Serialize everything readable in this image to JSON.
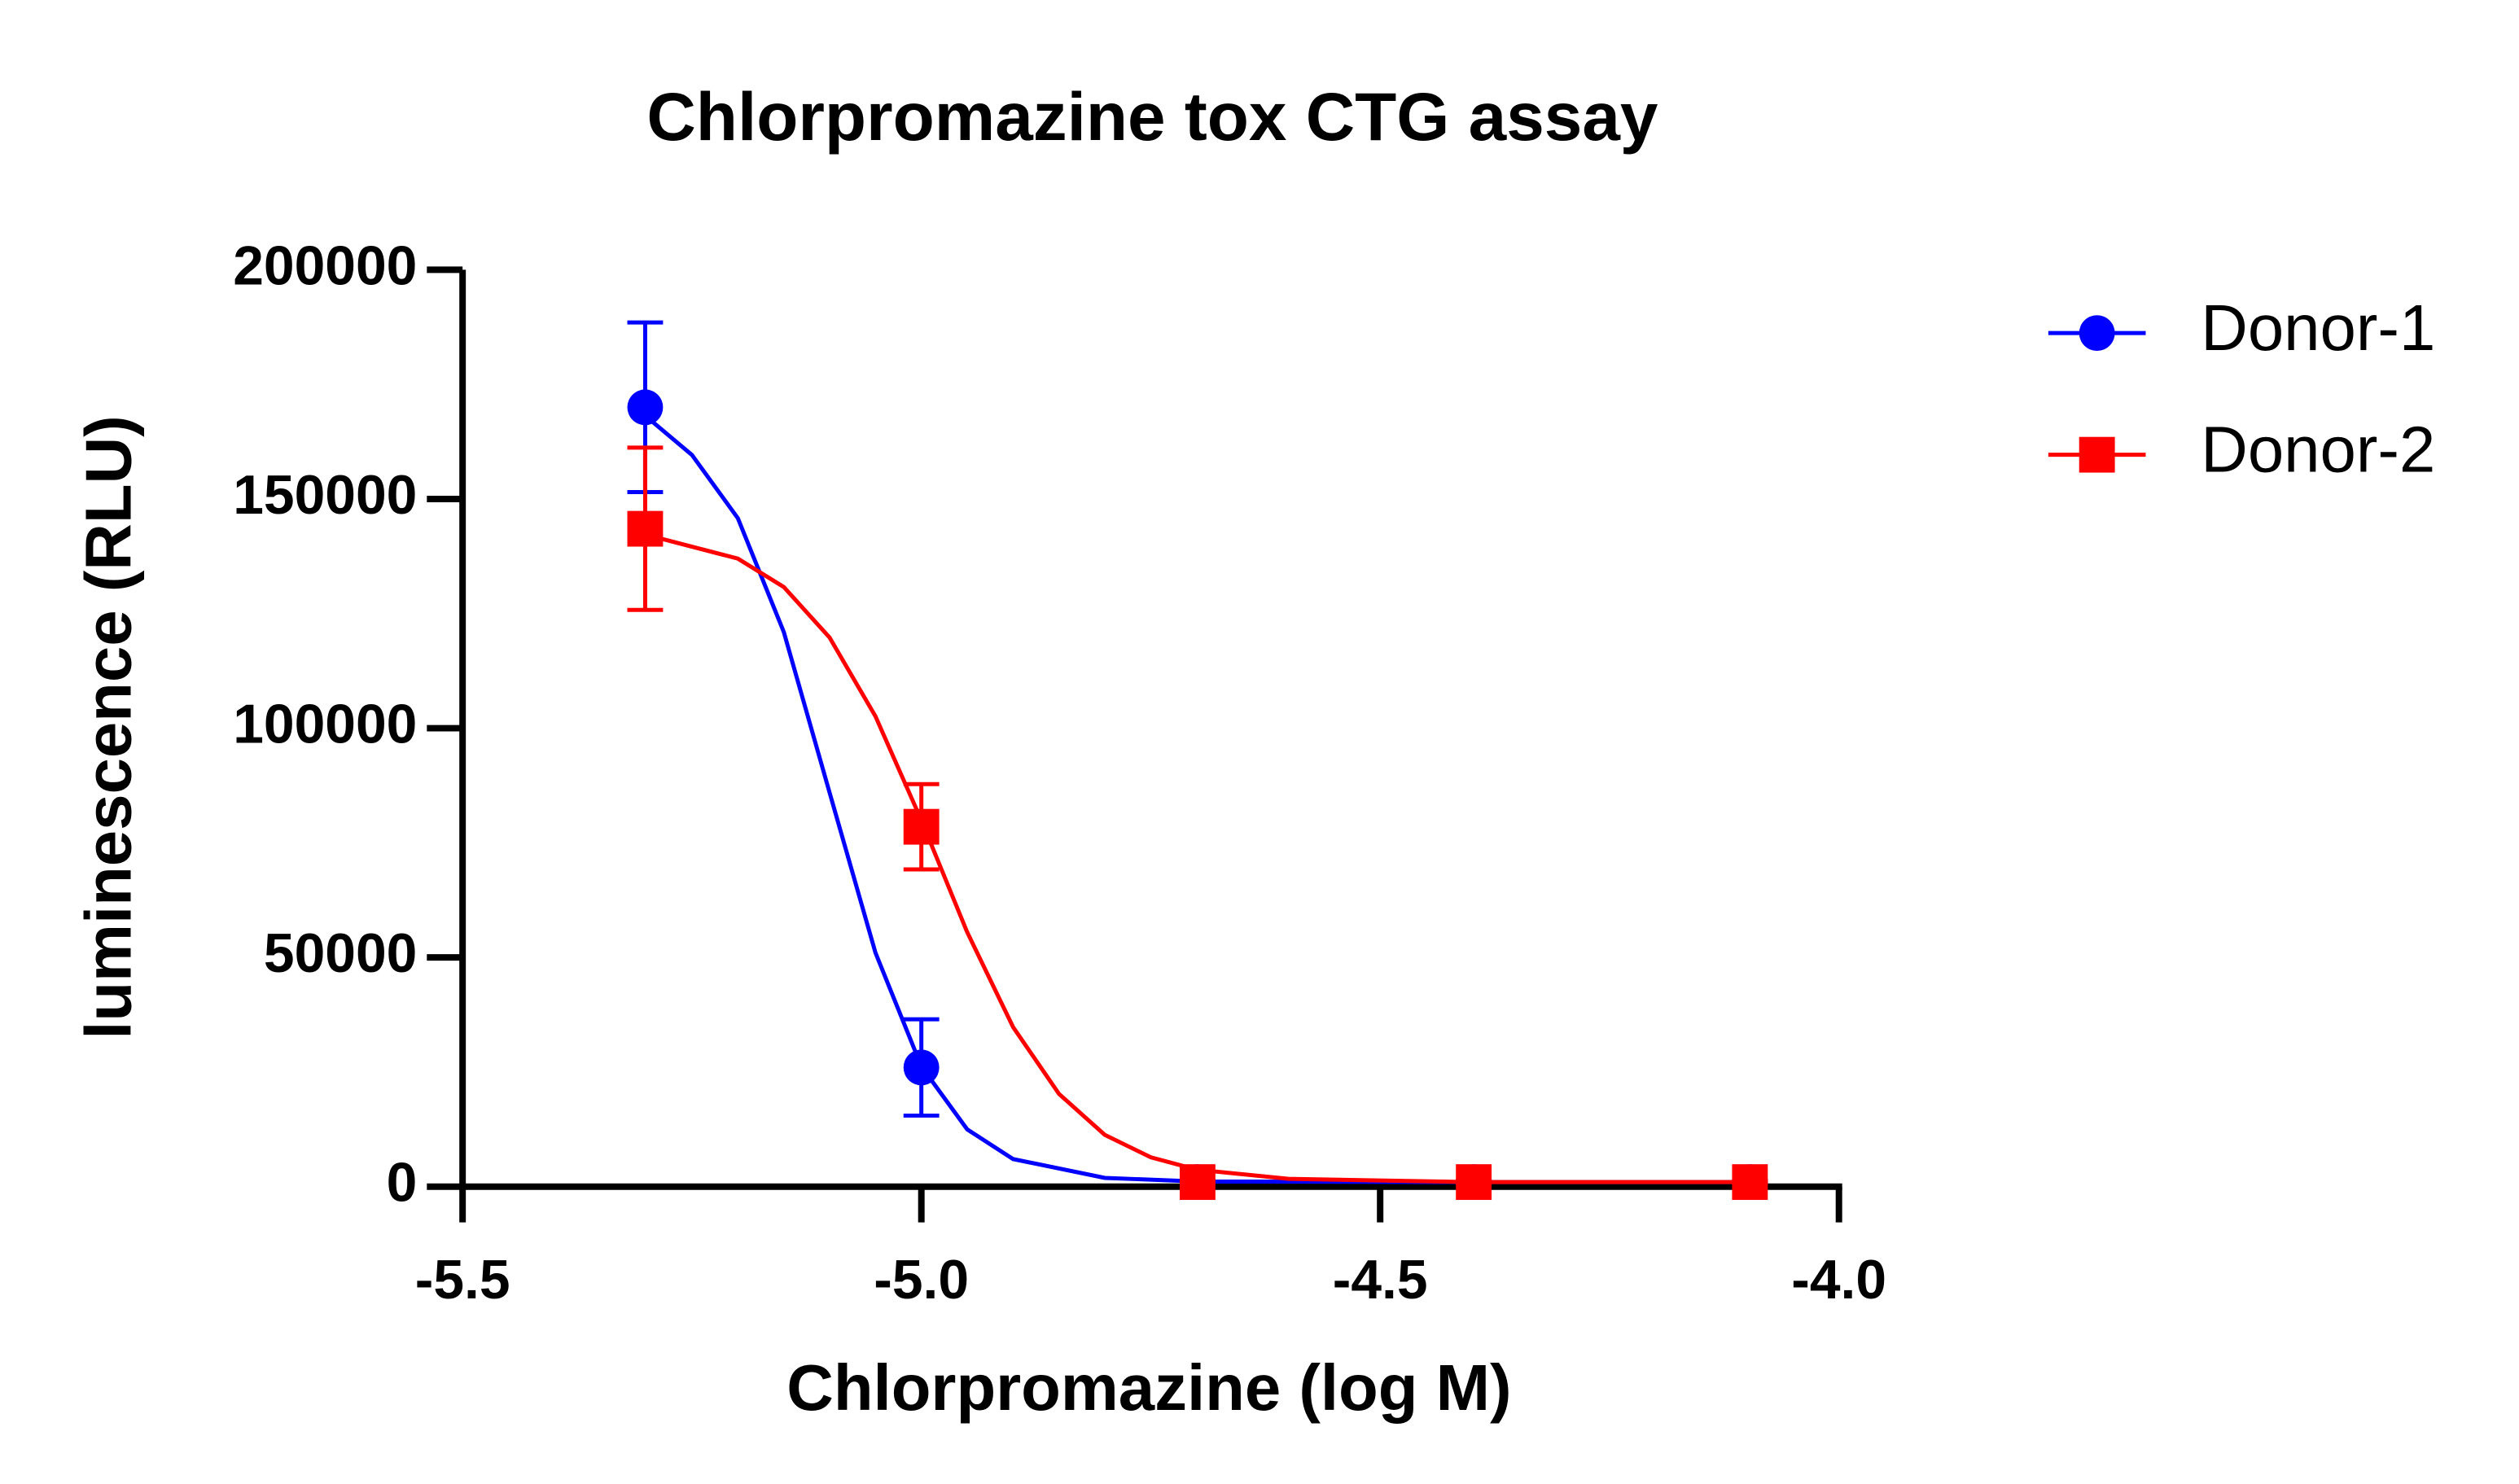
{
  "chart_data": {
    "type": "scatter",
    "title": "Chlorpromazine tox CTG assay",
    "x_label": "Chlorpromazine (log M)",
    "y_label": "luminescence (RLU)",
    "xlim": [
      -5.5,
      -4.0
    ],
    "xticks": [
      -5.5,
      {
        "value": -5,
        "label": "-5.0"
      },
      -4.5,
      {
        "value": -4,
        "label": "-4.0"
      }
    ],
    "ylim": [
      0,
      200000
    ],
    "yticks": [
      0,
      50000,
      100000,
      150000,
      200000
    ],
    "legend": "right",
    "series": [
      {
        "name": "Donor-1",
        "color": "#0000ff",
        "marker": "circle",
        "x": [
          -5.301,
          -5,
          -4.699,
          -4.398,
          -4.097
        ],
        "values": [
          170000,
          26000,
          1000,
          1000,
          1000
        ],
        "errors": [
          18500,
          10500,
          300,
          300,
          300
        ],
        "curve_x": [
          -5.3,
          -5.25,
          -5.2,
          -5.15,
          -5.1,
          -5.05,
          -5.0,
          -4.95,
          -4.9,
          -4.8,
          -4.7,
          -4.4,
          -4.097
        ],
        "curve_values": [
          168000,
          159600,
          145800,
          121000,
          86000,
          51000,
          26200,
          12500,
          6000,
          1900,
          1150,
          1000,
          1000
        ]
      },
      {
        "name": "Donor-2",
        "color": "#ff0000",
        "marker": "square",
        "x": [
          -5.301,
          -5,
          -4.699,
          -4.398,
          -4.097
        ],
        "values": [
          143500,
          78500,
          1000,
          1000,
          1000
        ],
        "errors": [
          17700,
          9300,
          300,
          300,
          300
        ],
        "curve_x": [
          -5.3,
          -5.2,
          -5.15,
          -5.1,
          -5.05,
          -5.0,
          -4.95,
          -4.9,
          -4.85,
          -4.8,
          -4.75,
          -4.7,
          -4.6,
          -4.4,
          -4.097
        ],
        "curve_values": [
          142200,
          137000,
          130800,
          119800,
          102600,
          79900,
          55500,
          34800,
          20200,
          11300,
          6400,
          3700,
          1700,
          1000,
          1000
        ]
      }
    ]
  }
}
